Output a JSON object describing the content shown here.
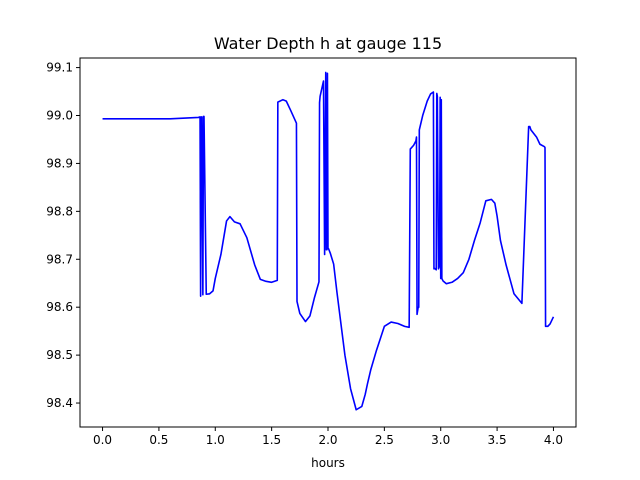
{
  "chart_data": {
    "type": "line",
    "title": "Water Depth h at gauge 115",
    "xlabel": "hours",
    "ylabel": "",
    "xlim": [
      -0.2,
      4.2
    ],
    "ylim": [
      98.35,
      99.12
    ],
    "x_ticks": [
      0.0,
      0.5,
      1.0,
      1.5,
      2.0,
      2.5,
      3.0,
      3.5,
      4.0
    ],
    "x_tick_labels": [
      "0.0",
      "0.5",
      "1.0",
      "1.5",
      "2.0",
      "2.5",
      "3.0",
      "3.5",
      "4.0"
    ],
    "y_ticks": [
      98.4,
      98.5,
      98.6,
      98.7,
      98.8,
      98.9,
      99.0,
      99.1
    ],
    "y_tick_labels": [
      "98.4",
      "98.5",
      "98.6",
      "98.7",
      "98.8",
      "98.9",
      "99.0",
      "99.1"
    ],
    "grid": false,
    "series": [
      {
        "name": "",
        "color": "#0000ff",
        "x": [
          0.0,
          0.3,
          0.6,
          0.85,
          0.865,
          0.87,
          0.875,
          0.88,
          0.89,
          0.895,
          0.9,
          0.92,
          0.95,
          0.98,
          1.0,
          1.05,
          1.1,
          1.13,
          1.17,
          1.22,
          1.28,
          1.35,
          1.4,
          1.45,
          1.5,
          1.55,
          1.555,
          1.6,
          1.63,
          1.67,
          1.72,
          1.725,
          1.75,
          1.8,
          1.84,
          1.88,
          1.92,
          1.925,
          1.93,
          1.96,
          1.97,
          1.98,
          1.985,
          1.99,
          1.995,
          2.0,
          2.005,
          2.02,
          2.05,
          2.08,
          2.15,
          2.2,
          2.25,
          2.3,
          2.33,
          2.35,
          2.38,
          2.43,
          2.5,
          2.56,
          2.62,
          2.68,
          2.72,
          2.73,
          2.76,
          2.78,
          2.785,
          2.79,
          2.8,
          2.805,
          2.81,
          2.84,
          2.88,
          2.91,
          2.935,
          2.94,
          2.945,
          2.96,
          2.965,
          2.97,
          2.98,
          2.99,
          2.995,
          3.0,
          3.005,
          3.01,
          3.02,
          3.05,
          3.1,
          3.15,
          3.2,
          3.25,
          3.3,
          3.35,
          3.4,
          3.45,
          3.48,
          3.5,
          3.53,
          3.58,
          3.65,
          3.72,
          3.78,
          3.79,
          3.8,
          3.85,
          3.88,
          3.92,
          3.925,
          3.93,
          3.95,
          3.97,
          4.0
        ],
        "y": [
          98.993,
          98.993,
          98.993,
          98.996,
          98.997,
          98.623,
          98.997,
          98.997,
          98.626,
          98.998,
          98.998,
          98.627,
          98.628,
          98.634,
          98.66,
          98.71,
          98.78,
          98.789,
          98.778,
          98.774,
          98.745,
          98.688,
          98.658,
          98.654,
          98.652,
          98.656,
          99.028,
          99.033,
          99.03,
          99.01,
          98.984,
          98.612,
          98.587,
          98.57,
          98.582,
          98.62,
          98.653,
          99.027,
          99.04,
          99.072,
          98.71,
          99.09,
          98.72,
          98.72,
          99.088,
          98.722,
          98.722,
          98.713,
          98.69,
          98.63,
          98.5,
          98.43,
          98.386,
          98.393,
          98.418,
          98.44,
          98.47,
          98.51,
          98.56,
          98.569,
          98.566,
          98.56,
          98.558,
          98.93,
          98.938,
          98.947,
          98.955,
          98.585,
          98.6,
          98.6,
          98.97,
          99.0,
          99.03,
          99.045,
          99.049,
          98.68,
          98.681,
          98.678,
          99.046,
          99.04,
          98.68,
          98.687,
          99.038,
          98.66,
          99.033,
          98.66,
          98.655,
          98.649,
          98.652,
          98.66,
          98.672,
          98.7,
          98.74,
          98.776,
          98.822,
          98.825,
          98.817,
          98.79,
          98.739,
          98.688,
          98.628,
          98.608,
          98.977,
          98.977,
          98.97,
          98.955,
          98.94,
          98.935,
          98.933,
          98.56,
          98.56,
          98.565,
          98.58
        ]
      }
    ]
  }
}
